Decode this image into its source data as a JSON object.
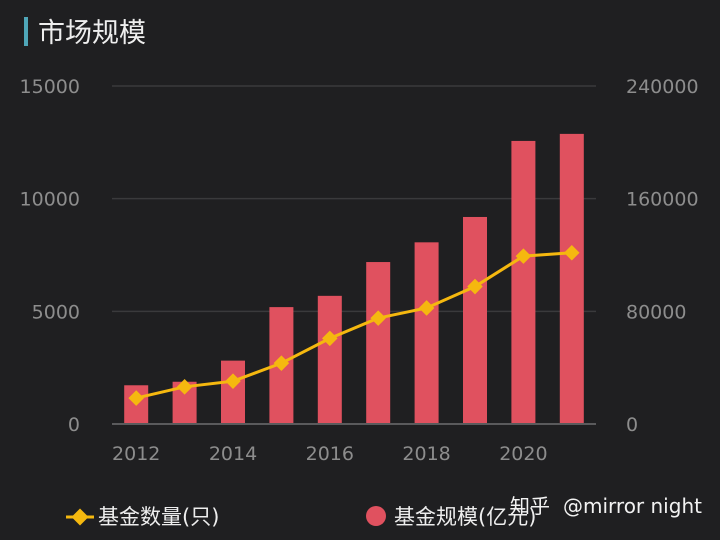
{
  "title": "市场规模",
  "chart_data": {
    "type": "bar+line",
    "categories": [
      2012,
      2013,
      2014,
      2015,
      2016,
      2017,
      2018,
      2019,
      2020,
      2021
    ],
    "x_tick_labels": [
      "2012",
      "2014",
      "2016",
      "2018",
      "2020"
    ],
    "left_axis": {
      "ylim": [
        0,
        15000
      ],
      "ticks": [
        "0",
        "5000",
        "10000",
        "15000"
      ]
    },
    "right_axis": {
      "ylim": [
        0,
        240000
      ],
      "ticks": [
        "0",
        "80000",
        "160000",
        "240000"
      ]
    },
    "series": [
      {
        "name": "基金数量(只)",
        "type": "line",
        "axis": "left",
        "color": "#f5b80f",
        "values": [
          1150,
          1650,
          1900,
          2700,
          3800,
          4700,
          5150,
          6100,
          7450,
          7600
        ]
      },
      {
        "name": "基金规模(亿元)",
        "type": "bar",
        "axis": "right",
        "color": "#e0515f",
        "values": [
          27500,
          30000,
          45000,
          83000,
          91000,
          115000,
          129000,
          147000,
          201000,
          206000
        ]
      }
    ],
    "legend_position": "bottom",
    "grid": true
  },
  "legend": {
    "line_label": "基金数量(只)",
    "bar_label": "基金规模(亿元)"
  },
  "watermark": {
    "site": "知乎",
    "user": "@mirror night"
  }
}
